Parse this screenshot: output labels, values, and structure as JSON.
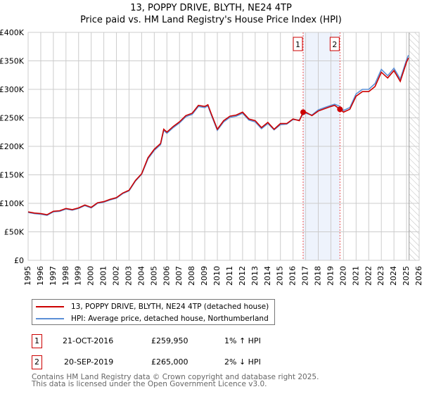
{
  "title": "13, POPPY DRIVE, BLYTH, NE24 4TP",
  "subtitle": "Price paid vs. HM Land Registry's House Price Index (HPI)",
  "chart_data": {
    "type": "line",
    "title": "13, POPPY DRIVE, BLYTH, NE24 4TP - Price paid vs. HM Land Registry's House Price Index (HPI)",
    "xlim": [
      1995,
      2026
    ],
    "ylim": [
      0,
      400000
    ],
    "x_ticks": [
      "1995",
      "1996",
      "1997",
      "1998",
      "1999",
      "2000",
      "2001",
      "2002",
      "2003",
      "2004",
      "2005",
      "2006",
      "2007",
      "2008",
      "2009",
      "2010",
      "2011",
      "2012",
      "2013",
      "2014",
      "2015",
      "2016",
      "2017",
      "2018",
      "2019",
      "2020",
      "2021",
      "2022",
      "2023",
      "2024",
      "2025",
      "2026"
    ],
    "y_ticks": [
      {
        "v": 0,
        "label": "£0"
      },
      {
        "v": 50000,
        "label": "£50K"
      },
      {
        "v": 100000,
        "label": "£100K"
      },
      {
        "v": 150000,
        "label": "£150K"
      },
      {
        "v": 200000,
        "label": "£200K"
      },
      {
        "v": 250000,
        "label": "£250K"
      },
      {
        "v": 300000,
        "label": "£300K"
      },
      {
        "v": 350000,
        "label": "£350K"
      },
      {
        "v": 400000,
        "label": "£400K"
      }
    ],
    "grid": true,
    "colors": {
      "property": "#cc0000",
      "hpi": "#5b8fd6",
      "band": "#eef3fc"
    },
    "series": [
      {
        "name": "13, POPPY DRIVE, BLYTH, NE24 4TP (detached house)",
        "x": [
          1995,
          1995.5,
          1996,
          1996.5,
          1997,
          1997.5,
          1998,
          1998.5,
          1999,
          1999.5,
          2000,
          2000.5,
          2001,
          2001.5,
          2002,
          2002.5,
          2003,
          2003.5,
          2004,
          2004.5,
          2005,
          2005.5,
          2005.75,
          2006,
          2006.5,
          2007,
          2007.5,
          2008,
          2008.5,
          2009,
          2009.25,
          2009.5,
          2010,
          2010.5,
          2011,
          2011.5,
          2012,
          2012.5,
          2013,
          2013.5,
          2014,
          2014.5,
          2015,
          2015.5,
          2016,
          2016.5,
          2016.8,
          2017,
          2017.5,
          2018,
          2018.5,
          2019,
          2019.3,
          2019.72,
          2020,
          2020.5,
          2021,
          2021.5,
          2022,
          2022.5,
          2023,
          2023.5,
          2024,
          2024.5,
          2025,
          2025.15
        ],
        "y": [
          85000,
          83000,
          82000,
          80000,
          86000,
          87000,
          91000,
          89000,
          92000,
          97000,
          93000,
          101000,
          103000,
          107000,
          110000,
          118000,
          123000,
          140000,
          152000,
          180000,
          195000,
          205000,
          230000,
          225000,
          235000,
          243000,
          254000,
          258000,
          272000,
          270000,
          273000,
          258000,
          230000,
          245000,
          253000,
          255000,
          260000,
          248000,
          245000,
          233000,
          242000,
          230000,
          240000,
          240000,
          248000,
          245000,
          259950,
          260000,
          254000,
          262000,
          266000,
          270000,
          272000,
          265000,
          260000,
          265000,
          288000,
          296000,
          296000,
          305000,
          330000,
          320000,
          333000,
          314000,
          348000,
          355000
        ]
      },
      {
        "name": "HPI: Average price, detached house, Northumberland",
        "x": [
          1995,
          1995.5,
          1996,
          1996.5,
          1997,
          1997.5,
          1998,
          1998.5,
          1999,
          1999.5,
          2000,
          2000.5,
          2001,
          2001.5,
          2002,
          2002.5,
          2003,
          2003.5,
          2004,
          2004.5,
          2005,
          2005.5,
          2005.75,
          2006,
          2006.5,
          2007,
          2007.5,
          2008,
          2008.5,
          2009,
          2009.25,
          2009.5,
          2010,
          2010.5,
          2011,
          2011.5,
          2012,
          2012.5,
          2013,
          2013.5,
          2014,
          2014.5,
          2015,
          2015.5,
          2016,
          2016.5,
          2016.8,
          2017,
          2017.5,
          2018,
          2018.5,
          2019,
          2019.3,
          2019.72,
          2020,
          2020.5,
          2021,
          2021.5,
          2022,
          2022.5,
          2023,
          2023.5,
          2024,
          2024.5,
          2025,
          2025.15
        ],
        "y": [
          84000,
          82000,
          81000,
          79000,
          85000,
          86000,
          90000,
          88000,
          91000,
          96000,
          92000,
          100000,
          102000,
          106000,
          109000,
          117000,
          122000,
          139000,
          151000,
          178000,
          193000,
          203000,
          228000,
          223000,
          233000,
          241000,
          252000,
          256000,
          270000,
          268000,
          271000,
          256000,
          228000,
          243000,
          251000,
          253000,
          258000,
          246000,
          243000,
          231000,
          240000,
          229000,
          238000,
          239000,
          247000,
          246000,
          257000,
          258000,
          255000,
          264000,
          268000,
          272000,
          274000,
          270000,
          263000,
          268000,
          292000,
          300000,
          300000,
          310000,
          335000,
          324000,
          337000,
          318000,
          352000,
          360000
        ]
      }
    ],
    "annotations": [
      {
        "label": "1",
        "x": 2016.8
      },
      {
        "label": "2",
        "x": 2019.72
      }
    ],
    "forecast_hatch_from": 2025.2
  },
  "legend": [
    {
      "label": "13, POPPY DRIVE, BLYTH, NE24 4TP (detached house)"
    },
    {
      "label": "HPI: Average price, detached house, Northumberland"
    }
  ],
  "sales": [
    {
      "num": "1",
      "date": "21-OCT-2016",
      "price": "£259,950",
      "hpi": "1% ↑ HPI"
    },
    {
      "num": "2",
      "date": "20-SEP-2019",
      "price": "£265,000",
      "hpi": "2% ↓ HPI"
    }
  ],
  "footer": {
    "line1": "Contains HM Land Registry data © Crown copyright and database right 2025.",
    "line2": "This data is licensed under the Open Government Licence v3.0."
  }
}
